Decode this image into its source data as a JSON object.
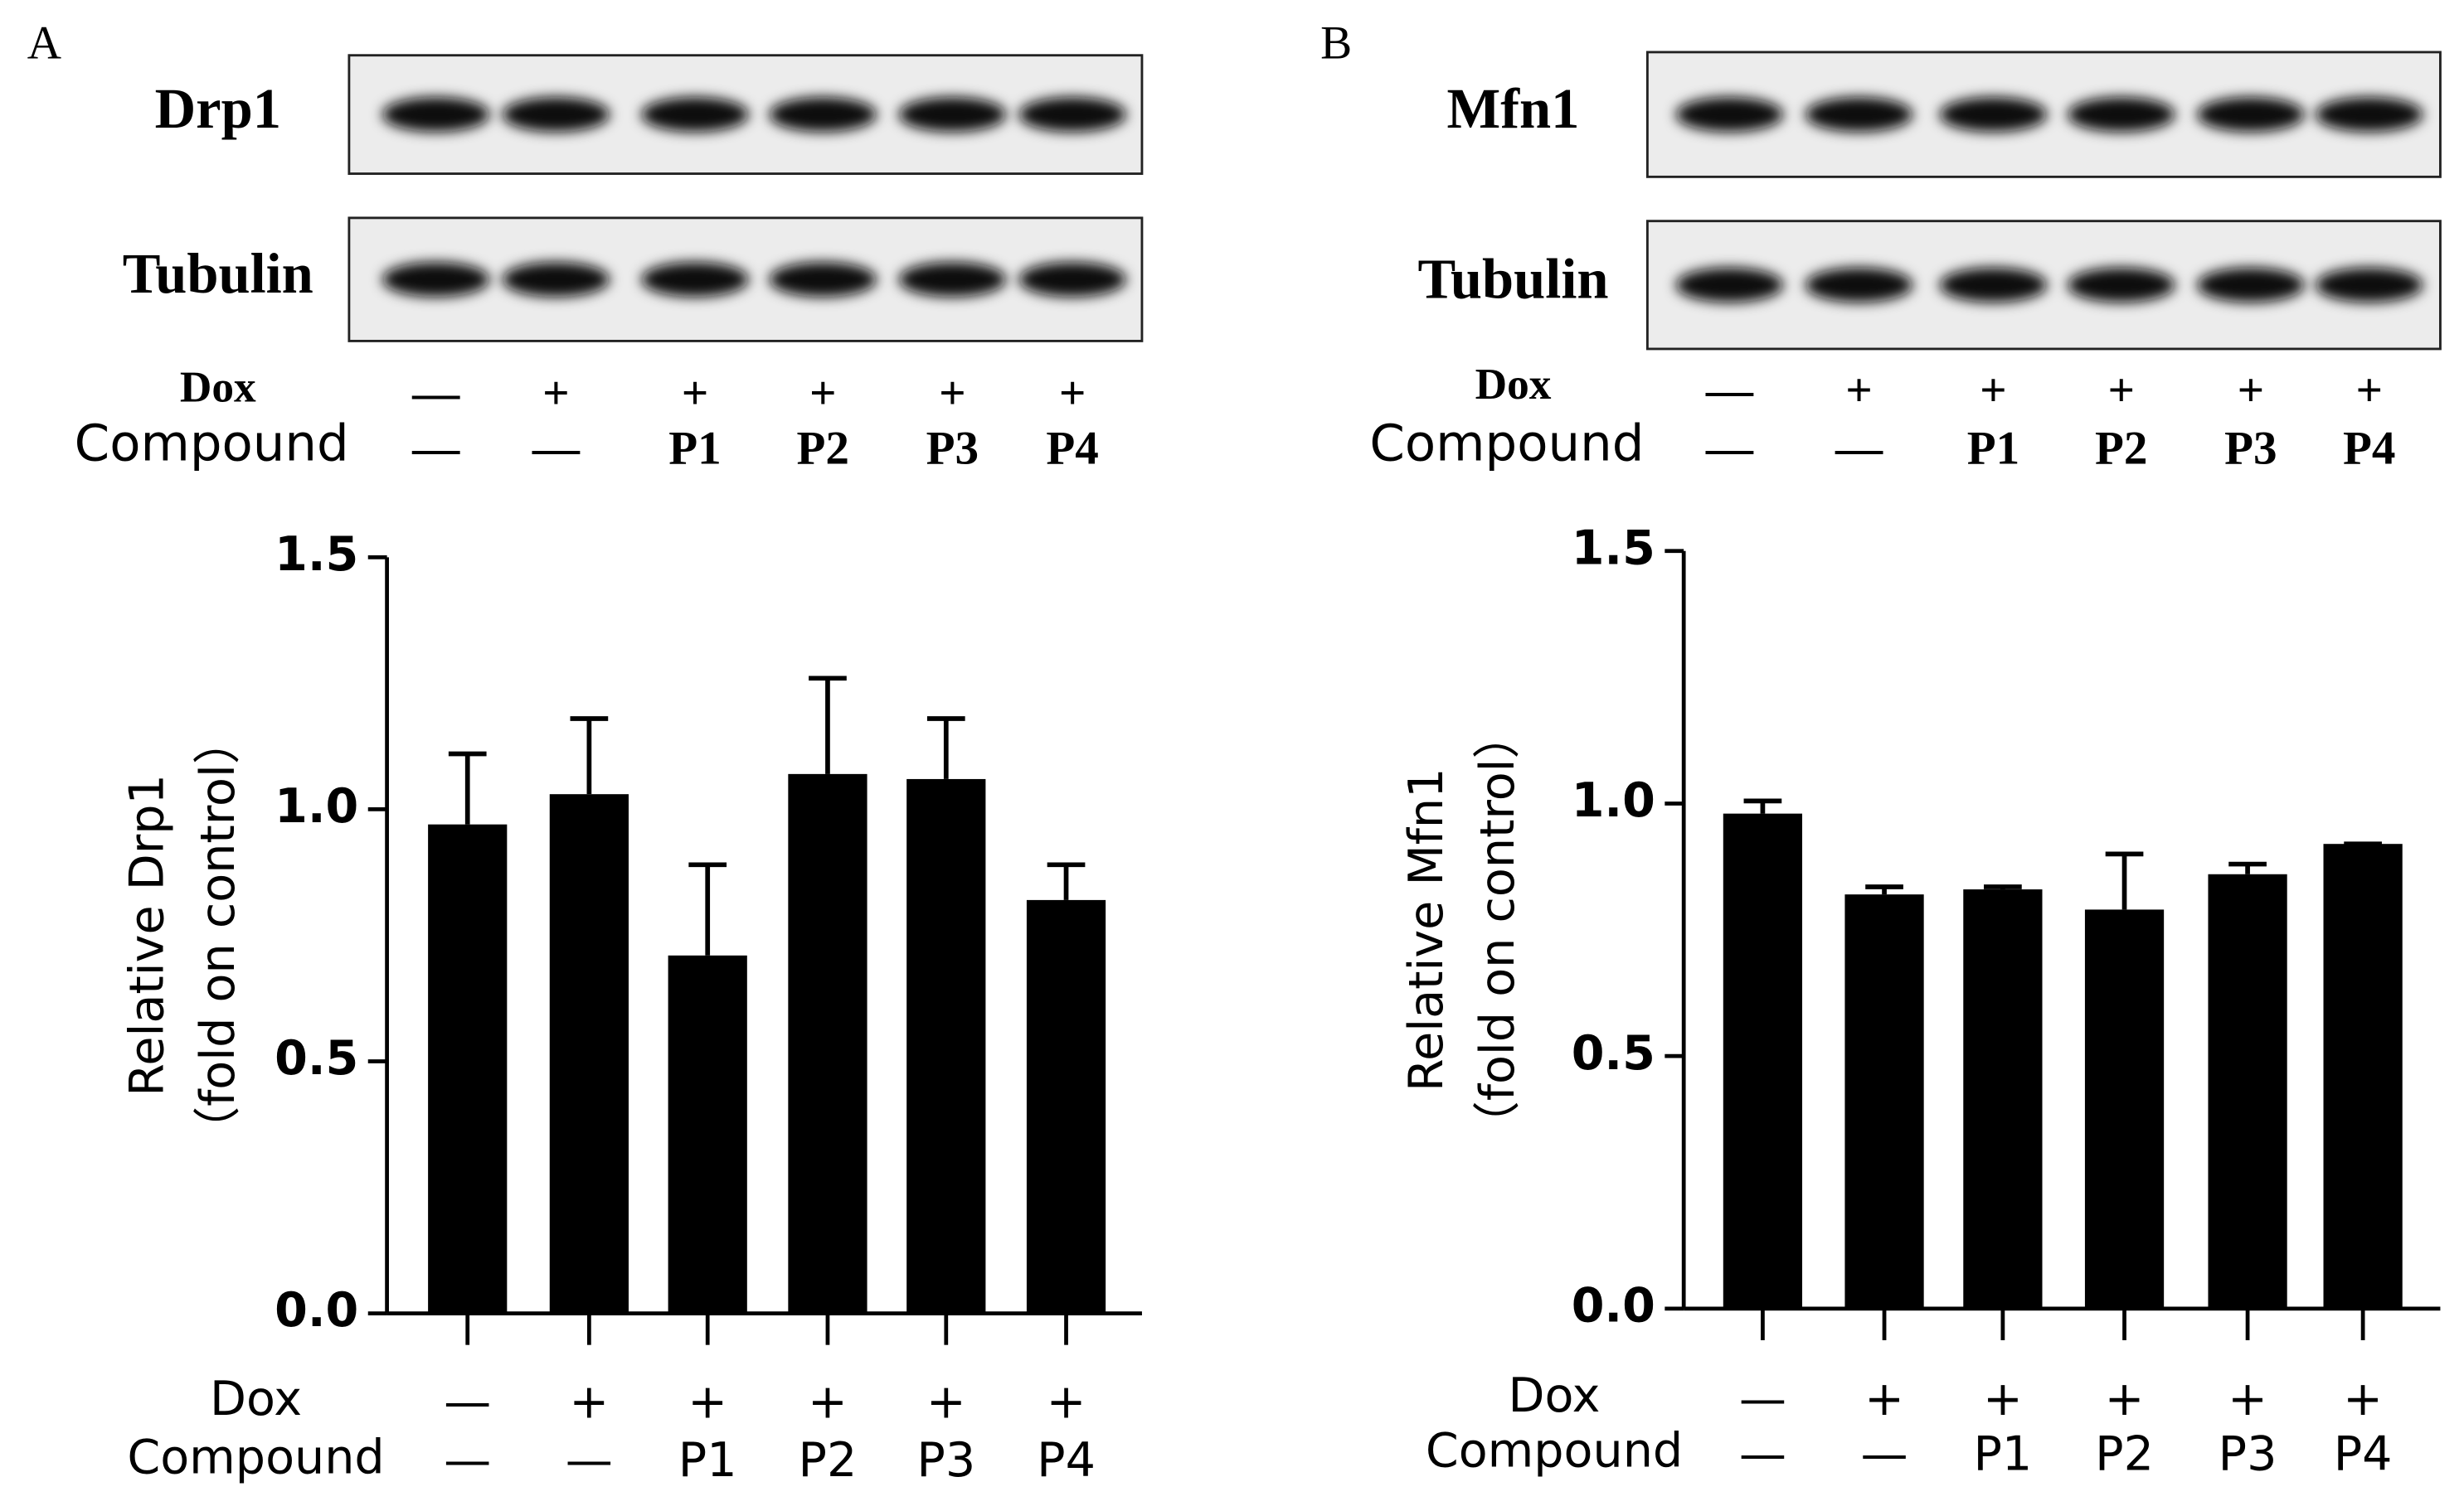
{
  "blots": [
    {
      "panel": "A",
      "bands": [
        "Drp1",
        "Tubulin"
      ],
      "condition_rows": [
        {
          "name": "Dox",
          "labels": [
            "—",
            "+",
            "+",
            "+",
            "+",
            "+"
          ]
        },
        {
          "name": "Compound",
          "labels": [
            "—",
            "—",
            "P1",
            "P2",
            "P3",
            "P4"
          ]
        }
      ]
    },
    {
      "panel": "B",
      "bands": [
        "Mfn1",
        "Tubulin"
      ],
      "condition_rows": [
        {
          "name": "Dox",
          "labels": [
            "—",
            "+",
            "+",
            "+",
            "+",
            "+"
          ]
        },
        {
          "name": "Compound",
          "labels": [
            "—",
            "—",
            "P1",
            "P2",
            "P3",
            "P4"
          ]
        }
      ]
    }
  ],
  "chart_data": [
    {
      "type": "bar",
      "y_label": [
        "Relative Drp1",
        "（fold on control）"
      ],
      "category_rows": [
        {
          "name": "Dox",
          "labels": [
            "—",
            "+",
            "+",
            "+",
            "+",
            "+"
          ]
        },
        {
          "name": "Compound",
          "labels": [
            "—",
            "—",
            "P1",
            "P2",
            "P3",
            "P4"
          ]
        }
      ],
      "values": [
        0.97,
        1.03,
        0.71,
        1.07,
        1.06,
        0.82
      ],
      "errors": [
        0.14,
        0.15,
        0.18,
        0.19,
        0.12,
        0.07
      ],
      "color": "#000000",
      "ylim": [
        0,
        1.5
      ],
      "yticks": [
        {
          "value": 0,
          "label": "0.0"
        },
        0.5,
        {
          "value": 1,
          "label": "1.0"
        },
        1.5
      ]
    },
    {
      "type": "bar",
      "y_label": [
        "Relative Mfn1",
        "（fold on control）"
      ],
      "category_rows": [
        {
          "name": "Dox",
          "labels": [
            "—",
            "+",
            "+",
            "+",
            "+",
            "+"
          ]
        },
        {
          "name": "Compound",
          "labels": [
            "—",
            "—",
            "P1",
            "P2",
            "P3",
            "P4"
          ]
        }
      ],
      "values": [
        0.98,
        0.82,
        0.83,
        0.79,
        0.86,
        0.92
      ],
      "errors": [
        0.025,
        0.015,
        0.005,
        0.11,
        0.02,
        0
      ],
      "color": "#000000",
      "ylim": [
        0,
        1.5
      ],
      "yticks": [
        {
          "value": 0,
          "label": "0.0"
        },
        0.5,
        {
          "value": 1,
          "label": "1.0"
        },
        1.5
      ]
    }
  ]
}
